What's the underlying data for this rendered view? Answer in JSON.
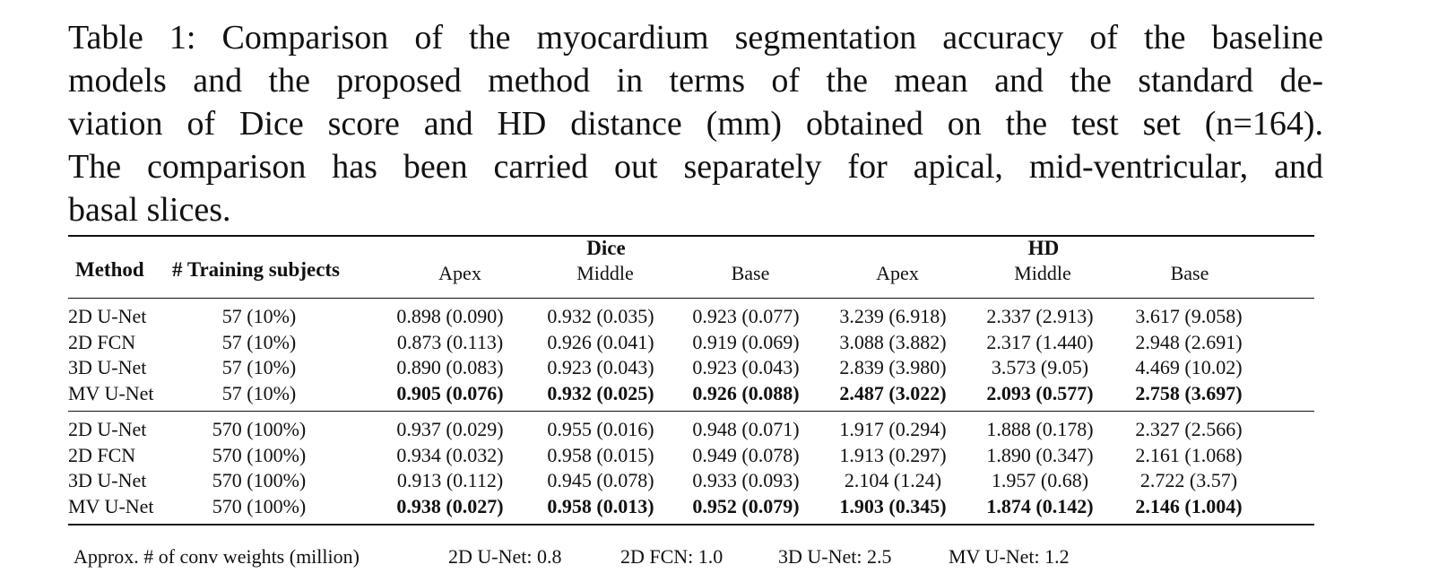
{
  "caption": {
    "lines": [
      "Table 1: Comparison of the myocardium segmentation accuracy of the baseline",
      "models and the proposed method in terms of the mean and the standard de-",
      "viation of Dice score and HD distance (mm) obtained on the test set (n=164).",
      "The comparison has been carried out separately for apical, mid-ventricular, and",
      "basal slices."
    ]
  },
  "table": {
    "header": {
      "method": "Method",
      "training": "# Training subjects",
      "dice_group": "Dice",
      "hd_group": "HD",
      "dice_cols": [
        "Apex",
        "Middle",
        "Base"
      ],
      "hd_cols": [
        "Apex",
        "Middle",
        "Base"
      ]
    },
    "groups": [
      {
        "rows": [
          {
            "method": "2D U-Net",
            "training": "57 (10%)",
            "bold": false,
            "values": [
              "0.898 (0.090)",
              "0.932 (0.035)",
              "0.923 (0.077)",
              "3.239 (6.918)",
              "2.337 (2.913)",
              "3.617 (9.058)"
            ]
          },
          {
            "method": "2D FCN",
            "training": "57 (10%)",
            "bold": false,
            "values": [
              "0.873 (0.113)",
              "0.926 (0.041)",
              "0.919 (0.069)",
              "3.088 (3.882)",
              "2.317 (1.440)",
              "2.948 (2.691)"
            ]
          },
          {
            "method": "3D U-Net",
            "training": "57 (10%)",
            "bold": false,
            "values": [
              "0.890 (0.083)",
              "0.923 (0.043)",
              "0.923 (0.043)",
              "2.839 (3.980)",
              "3.573 (9.05)",
              "4.469 (10.02)"
            ]
          },
          {
            "method": "MV U-Net",
            "training": "57 (10%)",
            "bold": true,
            "values": [
              "0.905 (0.076)",
              "0.932 (0.025)",
              "0.926 (0.088)",
              "2.487 (3.022)",
              "2.093 (0.577)",
              "2.758 (3.697)"
            ]
          }
        ]
      },
      {
        "rows": [
          {
            "method": "2D U-Net",
            "training": "570 (100%)",
            "bold": false,
            "values": [
              "0.937 (0.029)",
              "0.955 (0.016)",
              "0.948 (0.071)",
              "1.917 (0.294)",
              "1.888 (0.178)",
              "2.327 (2.566)"
            ]
          },
          {
            "method": "2D FCN",
            "training": "570 (100%)",
            "bold": false,
            "values": [
              "0.934 (0.032)",
              "0.958 (0.015)",
              "0.949 (0.078)",
              "1.913 (0.297)",
              "1.890 (0.347)",
              "2.161 (1.068)"
            ]
          },
          {
            "method": "3D U-Net",
            "training": "570 (100%)",
            "bold": false,
            "values": [
              "0.913 (0.112)",
              "0.945 (0.078)",
              "0.933 (0.093)",
              "2.104 (1.24)",
              "1.957 (0.68)",
              "2.722 (3.57)"
            ]
          },
          {
            "method": "MV U-Net",
            "training": "570 (100%)",
            "bold": true,
            "values": [
              "0.938 (0.027)",
              "0.958 (0.013)",
              "0.952 (0.079)",
              "1.903 (0.345)",
              "1.874 (0.142)",
              "2.146 (1.004)"
            ]
          }
        ]
      }
    ]
  },
  "footer": {
    "label": "Approx. # of conv weights (million)",
    "items": [
      "2D U-Net: 0.8",
      "2D FCN: 1.0",
      "3D U-Net: 2.5",
      "MV U-Net: 1.2"
    ]
  }
}
